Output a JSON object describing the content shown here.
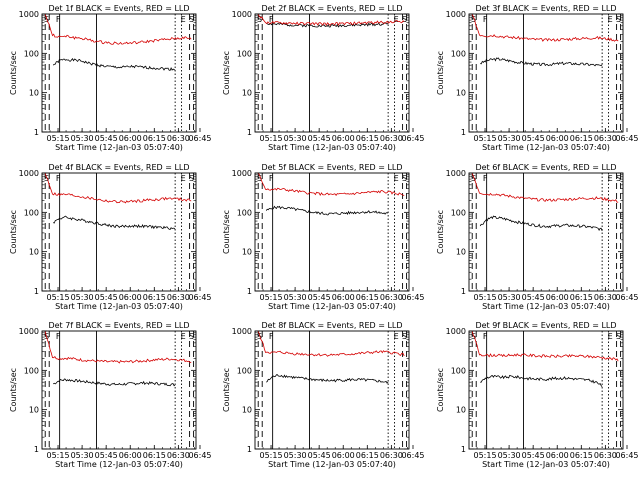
{
  "colors": {
    "events": "#000000",
    "lld": "#d40000",
    "axis": "#000000"
  },
  "shared": {
    "ylabel": "Counts/sec",
    "xlabel": "Start Time (12-Jan-03 05:07:40)",
    "x_ticks": [
      "05:15",
      "05:30",
      "05:45",
      "06:00",
      "06:15",
      "06:30",
      "06:45"
    ],
    "y_ticks": [
      "1",
      "10",
      "100",
      "1000"
    ],
    "markers": [
      "S",
      "F",
      "E",
      "S"
    ]
  },
  "chart_data": [
    {
      "type": "line",
      "title": "Det 1f BLACK = Events, RED = LLD",
      "xlabel": "Start Time (12-Jan-03 05:07:40)",
      "ylabel": "Counts/sec",
      "y_scale": "log",
      "ylim": [
        1,
        1000
      ],
      "xlim_minutes": [
        5,
        101
      ],
      "lines_solid_min": [
        16,
        39
      ],
      "lines_dash_min": [
        7,
        97
      ],
      "lines_dot_min": [
        88,
        92
      ],
      "series": [
        {
          "name": "Events",
          "x_start_min": 12,
          "x_end_min": 88,
          "values": [
            50,
            65,
            70,
            68,
            66,
            62,
            55,
            52,
            48,
            46,
            45,
            44,
            45,
            46,
            45,
            44,
            43,
            42,
            41,
            40,
            40
          ]
        },
        {
          "name": "LLD",
          "x_start_min": 7,
          "x_end_min": 98,
          "values": [
            1000,
            290,
            260,
            270,
            250,
            240,
            220,
            200,
            190,
            185,
            180,
            180,
            185,
            190,
            200,
            210,
            220,
            230,
            240,
            250,
            230
          ]
        }
      ]
    },
    {
      "type": "line",
      "title": "Det 2f BLACK = Events, RED = LLD",
      "xlabel": "Start Time (12-Jan-03 05:07:40)",
      "ylabel": "Counts/sec",
      "y_scale": "log",
      "ylim": [
        1,
        1000
      ],
      "xlim_minutes": [
        5,
        101
      ],
      "lines_solid_min": [
        16,
        39
      ],
      "lines_dash_min": [
        7,
        97
      ],
      "lines_dot_min": [
        88,
        92
      ],
      "series": [
        {
          "name": "Events",
          "x_start_min": 12,
          "x_end_min": 88,
          "values": [
            580,
            560,
            545,
            540,
            530,
            520,
            515,
            510,
            505,
            500,
            500,
            505,
            510,
            515,
            520,
            525,
            530,
            540,
            550,
            560,
            570
          ]
        },
        {
          "name": "LLD",
          "x_start_min": 7,
          "x_end_min": 98,
          "values": [
            1000,
            620,
            600,
            590,
            585,
            580,
            575,
            570,
            565,
            560,
            560,
            565,
            570,
            580,
            590,
            600,
            610,
            620,
            630,
            640,
            650
          ]
        }
      ]
    },
    {
      "type": "line",
      "title": "Det 3f BLACK = Events, RED = LLD",
      "xlabel": "Start Time (12-Jan-03 05:07:40)",
      "ylabel": "Counts/sec",
      "y_scale": "log",
      "ylim": [
        1,
        1000
      ],
      "xlim_minutes": [
        5,
        101
      ],
      "lines_solid_min": [
        16,
        39
      ],
      "lines_dash_min": [
        7,
        97
      ],
      "lines_dot_min": [
        88,
        92
      ],
      "series": [
        {
          "name": "Events",
          "x_start_min": 12,
          "x_end_min": 88,
          "values": [
            55,
            65,
            70,
            72,
            68,
            64,
            60,
            57,
            55,
            53,
            52,
            52,
            53,
            55,
            56,
            55,
            54,
            53,
            52,
            50,
            48
          ]
        },
        {
          "name": "LLD",
          "x_start_min": 7,
          "x_end_min": 98,
          "values": [
            1000,
            300,
            280,
            290,
            270,
            260,
            250,
            240,
            230,
            225,
            220,
            220,
            225,
            230,
            235,
            240,
            245,
            250,
            240,
            230,
            210
          ]
        }
      ]
    },
    {
      "type": "line",
      "title": "Det 4f BLACK = Events, RED = LLD",
      "xlabel": "Start Time (12-Jan-03 05:07:40)",
      "ylabel": "Counts/sec",
      "y_scale": "log",
      "ylim": [
        1,
        1000
      ],
      "xlim_minutes": [
        5,
        101
      ],
      "lines_solid_min": [
        16,
        39
      ],
      "lines_dash_min": [
        7,
        97
      ],
      "lines_dot_min": [
        88,
        92
      ],
      "series": [
        {
          "name": "Events",
          "x_start_min": 12,
          "x_end_min": 88,
          "values": [
            55,
            70,
            75,
            70,
            66,
            62,
            58,
            54,
            50,
            47,
            45,
            44,
            44,
            45,
            45,
            44,
            43,
            42,
            41,
            40,
            38
          ]
        },
        {
          "name": "LLD",
          "x_start_min": 7,
          "x_end_min": 98,
          "values": [
            1000,
            300,
            280,
            285,
            265,
            250,
            230,
            215,
            200,
            190,
            185,
            185,
            190,
            195,
            205,
            210,
            220,
            225,
            220,
            210,
            200
          ]
        }
      ]
    },
    {
      "type": "line",
      "title": "Det 5f BLACK = Events, RED = LLD",
      "xlabel": "Start Time (12-Jan-03 05:07:40)",
      "ylabel": "Counts/sec",
      "y_scale": "log",
      "ylim": [
        1,
        1000
      ],
      "xlim_minutes": [
        5,
        101
      ],
      "lines_solid_min": [
        16,
        39
      ],
      "lines_dash_min": [
        7,
        97
      ],
      "lines_dot_min": [
        88,
        92
      ],
      "series": [
        {
          "name": "Events",
          "x_start_min": 12,
          "x_end_min": 88,
          "values": [
            110,
            130,
            135,
            130,
            125,
            118,
            110,
            104,
            98,
            95,
            92,
            92,
            94,
            96,
            98,
            100,
            102,
            104,
            100,
            96,
            92
          ]
        },
        {
          "name": "LLD",
          "x_start_min": 7,
          "x_end_min": 98,
          "values": [
            1000,
            400,
            380,
            390,
            370,
            350,
            330,
            310,
            300,
            290,
            285,
            285,
            290,
            300,
            310,
            320,
            330,
            340,
            320,
            300,
            280
          ]
        }
      ]
    },
    {
      "type": "line",
      "title": "Det 6f BLACK = Events, RED = LLD",
      "xlabel": "Start Time (12-Jan-03 05:07:40)",
      "ylabel": "Counts/sec",
      "y_scale": "log",
      "ylim": [
        1,
        1000
      ],
      "xlim_minutes": [
        5,
        101
      ],
      "lines_solid_min": [
        16,
        39
      ],
      "lines_dash_min": [
        7,
        97
      ],
      "lines_dot_min": [
        88,
        92
      ],
      "series": [
        {
          "name": "Events",
          "x_start_min": 12,
          "x_end_min": 88,
          "values": [
            45,
            65,
            75,
            72,
            68,
            62,
            57,
            53,
            50,
            47,
            45,
            44,
            45,
            46,
            47,
            46,
            45,
            44,
            42,
            40,
            36
          ]
        },
        {
          "name": "LLD",
          "x_start_min": 7,
          "x_end_min": 98,
          "values": [
            1000,
            320,
            290,
            295,
            275,
            260,
            245,
            230,
            220,
            210,
            205,
            205,
            210,
            215,
            220,
            225,
            230,
            230,
            220,
            205,
            190
          ]
        }
      ]
    },
    {
      "type": "line",
      "title": "Det 7f BLACK = Events, RED = LLD",
      "xlabel": "Start Time (12-Jan-03 05:07:40)",
      "ylabel": "Counts/sec",
      "y_scale": "log",
      "ylim": [
        1,
        1000
      ],
      "xlim_minutes": [
        5,
        101
      ],
      "lines_solid_min": [
        16,
        39
      ],
      "lines_dash_min": [
        7,
        97
      ],
      "lines_dot_min": [
        88,
        92
      ],
      "series": [
        {
          "name": "Events",
          "x_start_min": 12,
          "x_end_min": 88,
          "values": [
            45,
            55,
            58,
            56,
            54,
            52,
            50,
            48,
            46,
            45,
            44,
            44,
            45,
            46,
            47,
            48,
            47,
            46,
            45,
            44,
            43
          ]
        },
        {
          "name": "LLD",
          "x_start_min": 7,
          "x_end_min": 98,
          "values": [
            1000,
            220,
            200,
            205,
            195,
            185,
            178,
            172,
            168,
            165,
            165,
            165,
            168,
            172,
            178,
            185,
            190,
            195,
            190,
            180,
            170
          ]
        }
      ]
    },
    {
      "type": "line",
      "title": "Det 8f BLACK = Events, RED = LLD",
      "xlabel": "Start Time (12-Jan-03 05:07:40)",
      "ylabel": "Counts/sec",
      "y_scale": "log",
      "ylim": [
        1,
        1000
      ],
      "xlim_minutes": [
        5,
        101
      ],
      "lines_solid_min": [
        16,
        39
      ],
      "lines_dash_min": [
        7,
        97
      ],
      "lines_dot_min": [
        88,
        92
      ],
      "series": [
        {
          "name": "Events",
          "x_start_min": 12,
          "x_end_min": 88,
          "values": [
            50,
            68,
            75,
            72,
            68,
            65,
            62,
            60,
            58,
            56,
            55,
            55,
            56,
            57,
            58,
            58,
            57,
            56,
            54,
            52,
            48
          ]
        },
        {
          "name": "LLD",
          "x_start_min": 7,
          "x_end_min": 98,
          "values": [
            1000,
            300,
            280,
            290,
            275,
            265,
            260,
            255,
            250,
            248,
            248,
            250,
            255,
            262,
            270,
            280,
            290,
            295,
            285,
            270,
            250
          ]
        }
      ]
    },
    {
      "type": "line",
      "title": "Det 9f BLACK = Events, RED = LLD",
      "xlabel": "Start Time (12-Jan-03 05:07:40)",
      "ylabel": "Counts/sec",
      "y_scale": "log",
      "ylim": [
        1,
        1000
      ],
      "xlim_minutes": [
        5,
        101
      ],
      "lines_solid_min": [
        16,
        39
      ],
      "lines_dash_min": [
        7,
        97
      ],
      "lines_dot_min": [
        88,
        92
      ],
      "series": [
        {
          "name": "Events",
          "x_start_min": 12,
          "x_end_min": 88,
          "values": [
            50,
            65,
            70,
            68,
            66,
            70,
            68,
            64,
            62,
            60,
            60,
            60,
            62,
            63,
            64,
            62,
            60,
            58,
            55,
            50,
            40
          ]
        },
        {
          "name": "LLD",
          "x_start_min": 7,
          "x_end_min": 98,
          "values": [
            1000,
            260,
            240,
            245,
            235,
            240,
            250,
            245,
            240,
            235,
            230,
            228,
            228,
            230,
            232,
            230,
            225,
            220,
            210,
            200,
            185
          ]
        }
      ]
    }
  ]
}
